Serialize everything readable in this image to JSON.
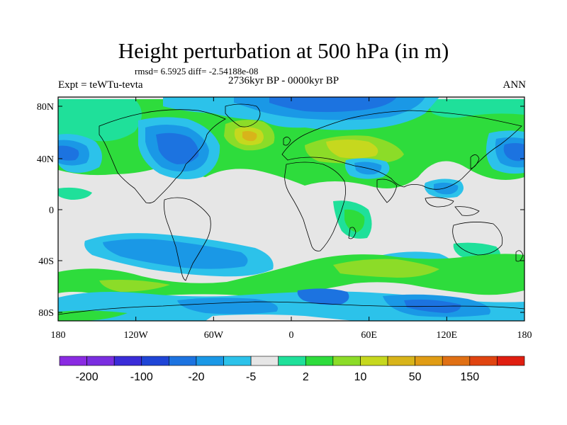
{
  "title": "Height perturbation at 500 hPa (in m)",
  "stats_line": "rmsd= 6.5925 diff= -2.54188e-08",
  "experiment": "Expt = teWTu-tevta",
  "period": "2736kyr BP - 0000kyr BP",
  "season": "ANN",
  "lat_labels": [
    "80N",
    "40N",
    "0",
    "40S",
    "80S"
  ],
  "lon_labels": [
    "180",
    "120W",
    "60W",
    "0",
    "60E",
    "120E",
    "180"
  ],
  "colorbar": {
    "colors": [
      "#8a2be2",
      "#7a2ee0",
      "#3a2cd8",
      "#1f45d6",
      "#1c73e0",
      "#1a98e6",
      "#2cc2ea",
      "#e6e6e6",
      "#1fe09a",
      "#2edc3c",
      "#8cdc28",
      "#c6d81e",
      "#d8b41a",
      "#e09c14",
      "#e07014",
      "#e04410",
      "#e01e10"
    ],
    "labels": [
      "-200",
      "-100",
      "-20",
      "-5",
      "2",
      "10",
      "50",
      "150"
    ]
  },
  "map_colors": {
    "background": "#e6e6e6",
    "coast": "#000000"
  }
}
